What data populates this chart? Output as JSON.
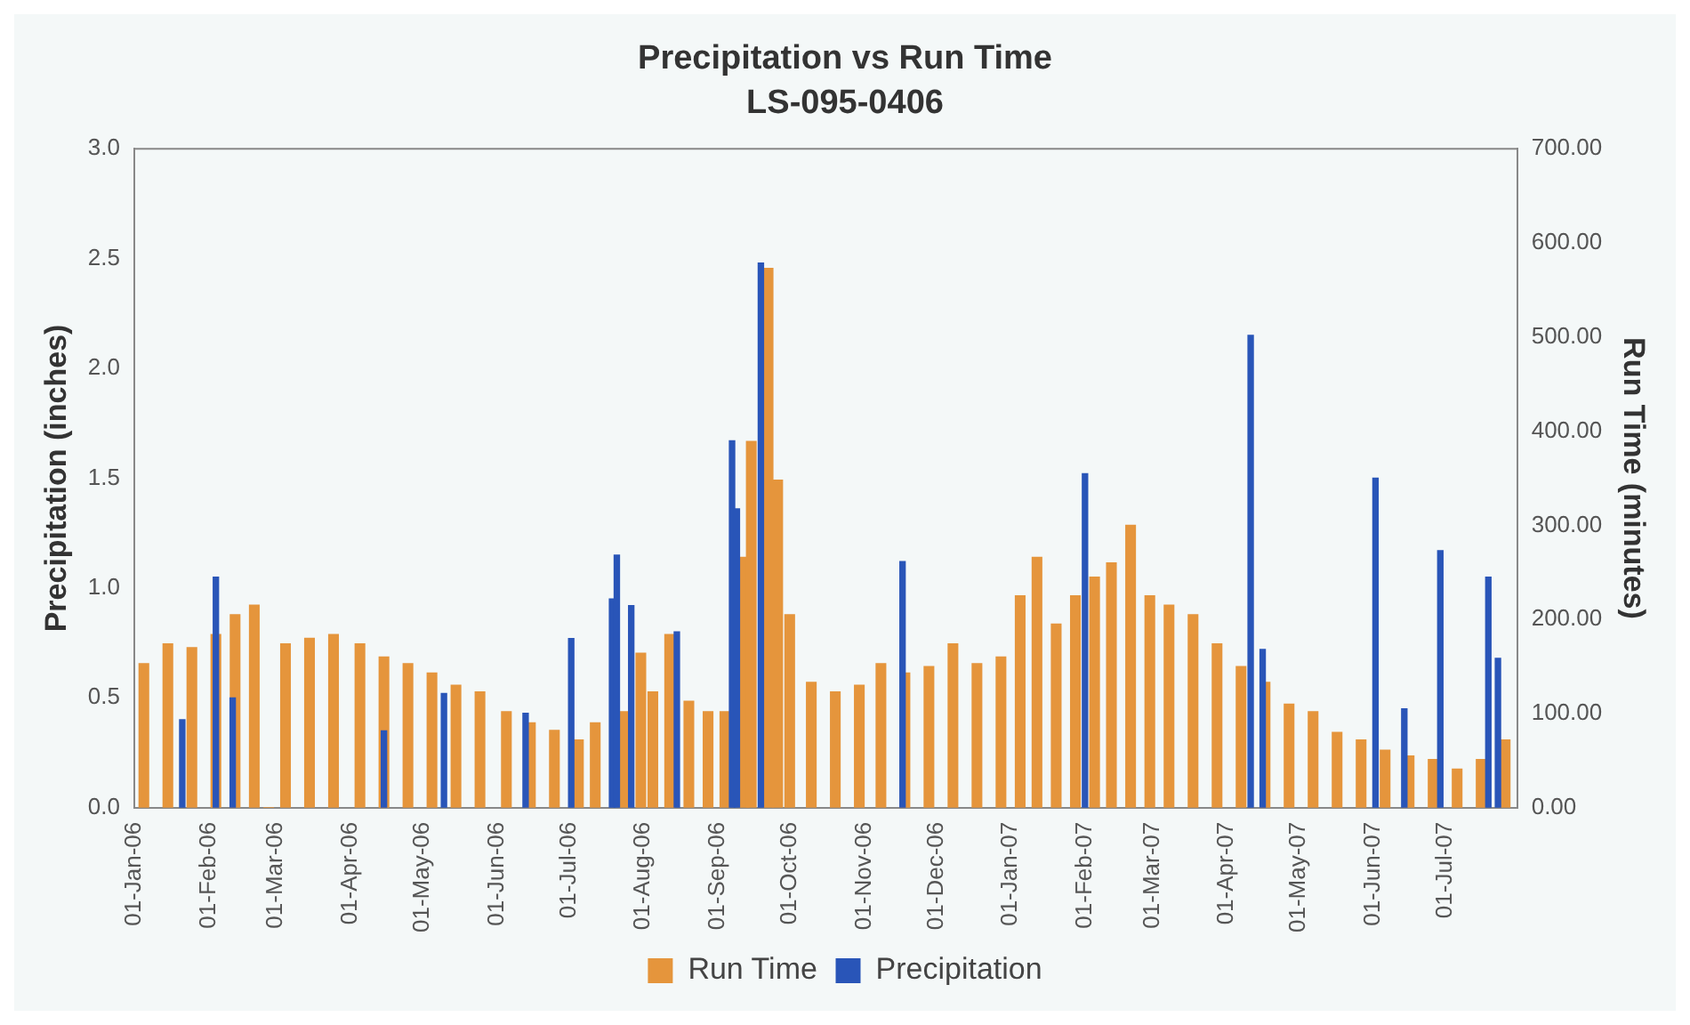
{
  "chart_data": {
    "type": "bar",
    "title": "Precipitation vs Run Time",
    "subtitle": "LS-095-0406",
    "ylabel": "Precipitation (inches)",
    "y2label": "Run Time (minutes)",
    "xlim": [
      "2006-01-01",
      "2007-07-31"
    ],
    "xticks": [
      {
        "value": "2006-01-01",
        "label": "01-Jan-06"
      },
      {
        "value": "2006-02-01",
        "label": "01-Feb-06"
      },
      {
        "value": "2006-03-01",
        "label": "01-Mar-06"
      },
      {
        "value": "2006-04-01",
        "label": "01-Apr-06"
      },
      {
        "value": "2006-05-01",
        "label": "01-May-06"
      },
      {
        "value": "2006-06-01",
        "label": "01-Jun-06"
      },
      {
        "value": "2006-07-01",
        "label": "01-Jul-06"
      },
      {
        "value": "2006-08-01",
        "label": "01-Aug-06"
      },
      {
        "value": "2006-09-01",
        "label": "01-Sep-06"
      },
      {
        "value": "2006-10-01",
        "label": "01-Oct-06"
      },
      {
        "value": "2006-11-01",
        "label": "01-Nov-06"
      },
      {
        "value": "2006-12-01",
        "label": "01-Dec-06"
      },
      {
        "value": "2007-01-01",
        "label": "01-Jan-07"
      },
      {
        "value": "2007-02-01",
        "label": "01-Feb-07"
      },
      {
        "value": "2007-03-01",
        "label": "01-Mar-07"
      },
      {
        "value": "2007-04-01",
        "label": "01-Apr-07"
      },
      {
        "value": "2007-05-01",
        "label": "01-May-07"
      },
      {
        "value": "2007-06-01",
        "label": "01-Jun-07"
      },
      {
        "value": "2007-07-01",
        "label": "01-Jul-07"
      }
    ],
    "ylim": [
      0,
      3
    ],
    "yticks": [
      {
        "value": 0,
        "label": "0.0"
      },
      {
        "value": 0.5,
        "label": "0.5"
      },
      {
        "value": 1,
        "label": "1.0"
      },
      {
        "value": 1.5,
        "label": "1.5"
      },
      {
        "value": 2,
        "label": "2.0"
      },
      {
        "value": 2.5,
        "label": "2.5"
      },
      {
        "value": 3,
        "label": "3.0"
      }
    ],
    "y2lim": [
      0,
      700
    ],
    "y2ticks": [
      {
        "value": 0,
        "label": "0.00"
      },
      {
        "value": 100,
        "label": "100.00"
      },
      {
        "value": 200,
        "label": "200.00"
      },
      {
        "value": 300,
        "label": "300.00"
      },
      {
        "value": 400,
        "label": "400.00"
      },
      {
        "value": 500,
        "label": "500.00"
      },
      {
        "value": 600,
        "label": "600.00"
      },
      {
        "value": 700,
        "label": "700.00"
      }
    ],
    "legend": "bottom",
    "grid": false,
    "series": [
      {
        "name": "Run Time",
        "color": "#e5953c",
        "axis": "y2",
        "x": [
          "2006-01-05",
          "2006-01-15",
          "2006-01-25",
          "2006-02-04",
          "2006-02-12",
          "2006-02-20",
          "2006-02-26",
          "2006-03-05",
          "2006-03-15",
          "2006-03-25",
          "2006-04-05",
          "2006-04-15",
          "2006-04-25",
          "2006-05-05",
          "2006-05-15",
          "2006-05-25",
          "2006-06-05",
          "2006-06-15",
          "2006-06-25",
          "2006-07-05",
          "2006-07-12",
          "2006-07-24",
          "2006-07-31",
          "2006-08-05",
          "2006-08-12",
          "2006-08-20",
          "2006-08-28",
          "2006-09-04",
          "2006-09-12",
          "2006-09-15",
          "2006-09-22",
          "2006-09-26",
          "2006-10-01",
          "2006-10-10",
          "2006-10-20",
          "2006-10-30",
          "2006-11-08",
          "2006-11-18",
          "2006-11-28",
          "2006-12-08",
          "2006-12-18",
          "2006-12-28",
          "2007-01-05",
          "2007-01-12",
          "2007-01-20",
          "2007-01-28",
          "2007-02-05",
          "2007-02-12",
          "2007-02-20",
          "2007-02-28",
          "2007-03-08",
          "2007-03-18",
          "2007-03-28",
          "2007-04-07",
          "2007-04-17",
          "2007-04-27",
          "2007-05-07",
          "2007-05-17",
          "2007-05-27",
          "2007-06-06",
          "2007-06-16",
          "2007-06-26",
          "2007-07-06",
          "2007-07-16",
          "2007-07-26"
        ],
        "values": [
          153,
          174,
          170,
          184,
          205,
          215,
          0,
          174,
          180,
          184,
          174,
          160,
          153,
          143,
          130,
          123,
          102,
          90,
          82,
          72,
          90,
          102,
          164,
          123,
          184,
          113,
          102,
          102,
          266,
          389,
          573,
          348,
          205,
          133,
          123,
          130,
          153,
          143,
          150,
          174,
          153,
          160,
          225,
          266,
          195,
          225,
          245,
          260,
          300,
          225,
          215,
          205,
          174,
          150,
          133,
          110,
          102,
          80,
          72,
          61,
          55,
          51,
          41,
          51,
          72
        ]
      },
      {
        "name": "Precipitation",
        "color": "#2955b8",
        "axis": "y",
        "x": [
          "2006-01-21",
          "2006-02-04",
          "2006-02-11",
          "2006-04-15",
          "2006-05-10",
          "2006-06-13",
          "2006-07-02",
          "2006-07-19",
          "2006-07-21",
          "2006-07-27",
          "2006-08-15",
          "2006-09-07",
          "2006-09-09",
          "2006-09-19",
          "2006-11-17",
          "2007-02-01",
          "2007-04-11",
          "2007-04-16",
          "2007-06-02",
          "2007-06-14",
          "2007-06-29",
          "2007-07-19",
          "2007-07-23"
        ],
        "values": [
          0.4,
          1.05,
          0.5,
          0.35,
          0.52,
          0.43,
          0.77,
          0.95,
          1.15,
          0.92,
          0.8,
          1.67,
          1.36,
          2.48,
          1.12,
          1.52,
          2.15,
          0.72,
          1.5,
          0.45,
          1.17,
          1.05,
          0.68
        ]
      }
    ]
  }
}
